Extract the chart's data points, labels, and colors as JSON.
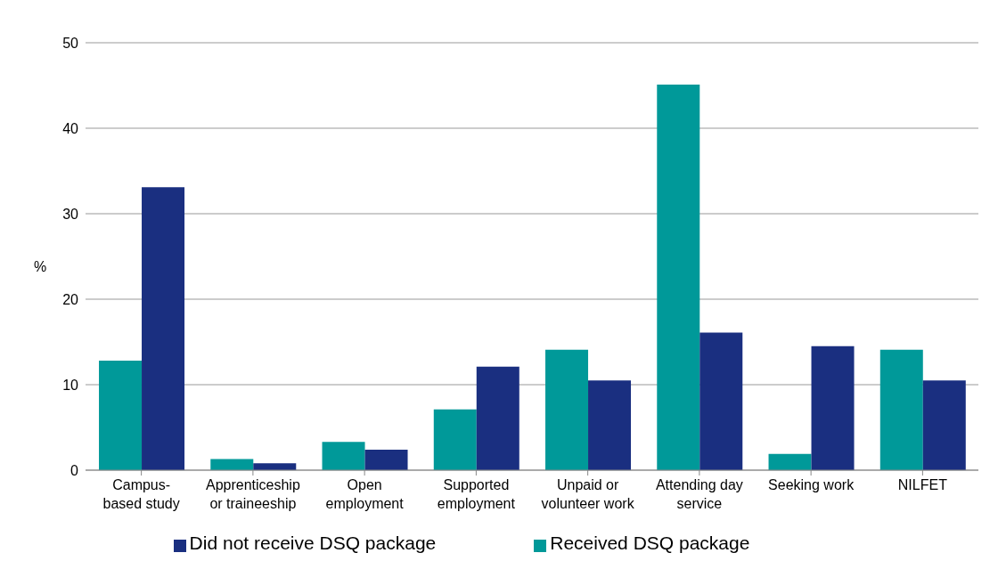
{
  "chart_data": {
    "type": "bar",
    "ylabel": "%",
    "categories": [
      "Campus-\nbased study",
      "Apprenticeship\nor traineeship",
      "Open\nemployment",
      "Supported\nemployment",
      "Unpaid or\nvolunteer work",
      "Attending day\nservice",
      "Seeking work",
      "NILFET"
    ],
    "series": [
      {
        "name": "Received DSQ package",
        "color": "#009999",
        "values": [
          12.8,
          1.3,
          3.3,
          7.1,
          14.1,
          45.1,
          1.9,
          14.1
        ]
      },
      {
        "name": "Did not receive DSQ package",
        "color": "#1a2f80",
        "values": [
          33.1,
          0.8,
          2.4,
          12.1,
          10.5,
          16.1,
          14.5,
          10.5
        ]
      }
    ],
    "ylim": [
      0,
      50
    ],
    "yticks": [
      0,
      10,
      20,
      30,
      40,
      50
    ],
    "grid": "y",
    "legend": "bottom"
  }
}
